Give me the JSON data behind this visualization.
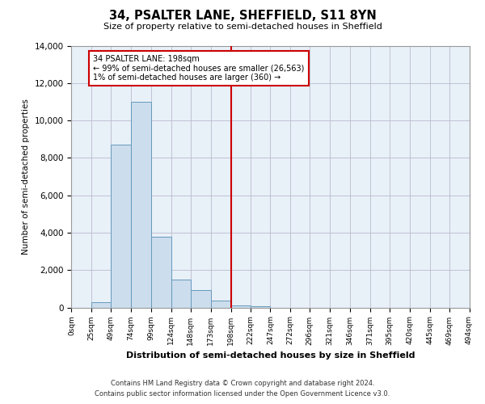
{
  "title": "34, PSALTER LANE, SHEFFIELD, S11 8YN",
  "subtitle": "Size of property relative to semi-detached houses in Sheffield",
  "xlabel": "Distribution of semi-detached houses by size in Sheffield",
  "ylabel": "Number of semi-detached properties",
  "bar_color": "#ccdded",
  "bar_edge_color": "#6699bb",
  "background_color": "#ffffff",
  "plot_bg_color": "#e8f0f8",
  "grid_color": "#bbbbcc",
  "vline_x": 198,
  "vline_color": "#cc0000",
  "annotation_line1": "34 PSALTER LANE: 198sqm",
  "annotation_line2": "← 99% of semi-detached houses are smaller (26,563)",
  "annotation_line3": "1% of semi-detached houses are larger (360) →",
  "annotation_box_color": "#ffffff",
  "annotation_box_edge": "#cc0000",
  "footer_line1": "Contains HM Land Registry data © Crown copyright and database right 2024.",
  "footer_line2": "Contains public sector information licensed under the Open Government Licence v3.0.",
  "bin_edges": [
    0,
    25,
    49,
    74,
    99,
    124,
    148,
    173,
    198,
    222,
    247,
    272,
    296,
    321,
    346,
    371,
    395,
    420,
    445,
    469,
    494
  ],
  "bin_counts": [
    0,
    290,
    8700,
    11000,
    3800,
    1500,
    950,
    380,
    90,
    50,
    0,
    0,
    0,
    0,
    0,
    0,
    0,
    0,
    0,
    0
  ],
  "tick_labels": [
    "0sqm",
    "25sqm",
    "49sqm",
    "74sqm",
    "99sqm",
    "124sqm",
    "148sqm",
    "173sqm",
    "198sqm",
    "222sqm",
    "247sqm",
    "272sqm",
    "296sqm",
    "321sqm",
    "346sqm",
    "371sqm",
    "395sqm",
    "420sqm",
    "445sqm",
    "469sqm",
    "494sqm"
  ],
  "ylim": [
    0,
    14000
  ],
  "yticks": [
    0,
    2000,
    4000,
    6000,
    8000,
    10000,
    12000,
    14000
  ]
}
